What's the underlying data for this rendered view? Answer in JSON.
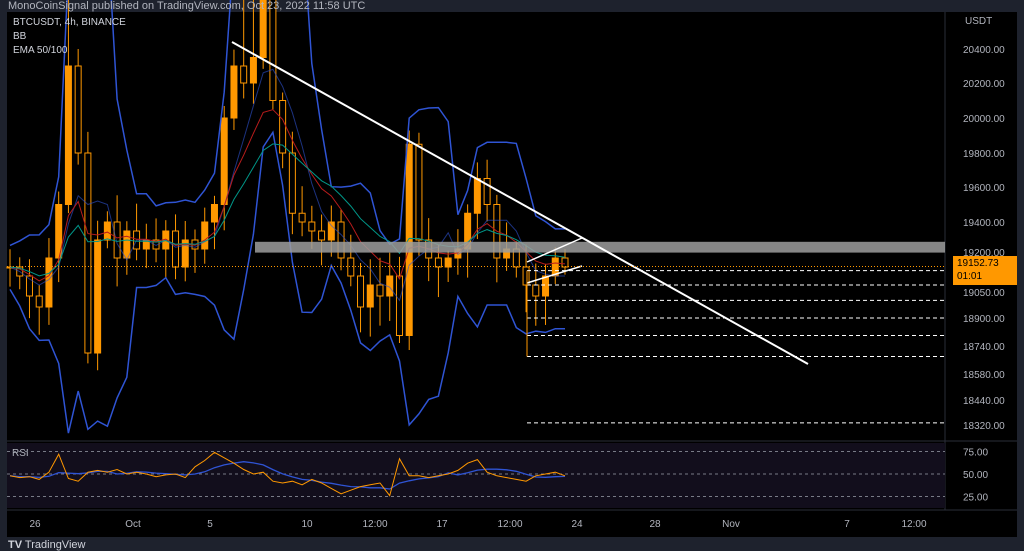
{
  "header": {
    "published": "MonoCoinSignal published on TradingView.com, Oct 23, 2022 11:58 UTC"
  },
  "legend": {
    "symbol": "BTCUSDT, 4h, BINANCE",
    "bb": "BB",
    "ema": "EMA 50/100"
  },
  "footer": {
    "brand": "TradingView"
  },
  "colors": {
    "candle": "#ff9800",
    "bb": "#2f54d4",
    "ema50": "#b71c1c",
    "ema100": "#009688",
    "trendline": "#ffffff",
    "zone": "#9e9e9e",
    "rsi": "#ff9800",
    "rsi_ma": "#2f54d4"
  },
  "chart_data": {
    "type": "candlestick",
    "currency": "USDT",
    "price_ticks": [
      "20400.00",
      "20200.00",
      "20000.00",
      "19800.00",
      "19600.00",
      "19400.00",
      "19200.00",
      "19050.00",
      "18900.00",
      "18740.00",
      "18580.00",
      "18440.00",
      "18320.00"
    ],
    "time_ticks": [
      "26",
      "Oct",
      "5",
      "10",
      "12:00",
      "17",
      "12:00",
      "24",
      "28",
      "Nov",
      "7",
      "12:00"
    ],
    "last_price": "19152.73",
    "countdown": "01:01",
    "closes": [
      19150,
      19100,
      19000,
      18950,
      19200,
      19500,
      20300,
      19800,
      18700,
      19300,
      19400,
      19200,
      19350,
      19250,
      19300,
      19250,
      19350,
      19150,
      19300,
      19250,
      19400,
      19500,
      20000,
      20300,
      20200,
      20350,
      20450,
      20100,
      19800,
      19450,
      19400,
      19350,
      19300,
      19400,
      19200,
      19100,
      18950,
      19050,
      19000,
      19100,
      18800,
      19850,
      19300,
      19200,
      19150,
      19200,
      19250,
      19450,
      19650,
      19500,
      19200,
      19250,
      19150,
      19050,
      19000,
      19100,
      19200,
      19150
    ],
    "resistance_zone": [
      19230,
      19290
    ],
    "target_levels": [
      19130,
      19050,
      18980,
      18900,
      18800,
      18680,
      18330
    ],
    "rsi": {
      "label": "RSI",
      "ticks": [
        "75.00",
        "50.00",
        "25.00"
      ],
      "values": [
        48,
        46,
        47,
        44,
        52,
        72,
        45,
        42,
        52,
        54,
        52,
        55,
        50,
        52,
        50,
        47,
        49,
        50,
        46,
        58,
        65,
        74,
        68,
        62,
        55,
        50,
        52,
        42,
        40,
        42,
        38,
        44,
        40,
        34,
        28,
        32,
        36,
        38,
        40,
        26,
        67,
        48,
        48,
        46,
        48,
        50,
        54,
        62,
        66,
        52,
        48,
        46,
        44,
        42,
        48,
        50,
        52,
        48
      ]
    }
  }
}
